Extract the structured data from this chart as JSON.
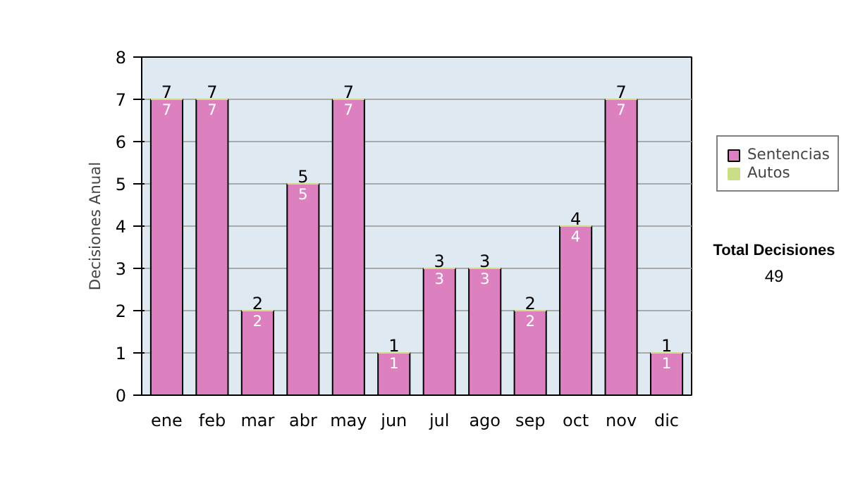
{
  "chart_data": {
    "type": "bar",
    "stacked": true,
    "ylabel": "Decisiones Anual",
    "categories": [
      "ene",
      "feb",
      "mar",
      "abr",
      "may",
      "jun",
      "jul",
      "ago",
      "sep",
      "oct",
      "nov",
      "dic"
    ],
    "series": [
      {
        "name": "Sentencias",
        "color": "#dd80bf",
        "values": [
          7,
          7,
          2,
          5,
          7,
          1,
          3,
          3,
          2,
          4,
          7,
          1
        ],
        "value_labels": [
          "7",
          "7",
          "2",
          "5",
          "7",
          "1",
          "3",
          "3",
          "2",
          "4",
          "7",
          "1"
        ]
      },
      {
        "name": "Autos",
        "color": "#ccdd88",
        "values": [
          0,
          0,
          0,
          0,
          0,
          0,
          0,
          0,
          0,
          0,
          0,
          0
        ]
      }
    ],
    "totals": [
      "7",
      "7",
      "2",
      "5",
      "7",
      "1",
      "3",
      "3",
      "2",
      "4",
      "7",
      "1"
    ],
    "ylim": [
      0,
      8
    ],
    "yticks": [
      0,
      1,
      2,
      3,
      4,
      5,
      6,
      7,
      8
    ],
    "grid": "y",
    "legend": "right",
    "annotations": [
      "Total Decisiones",
      "49"
    ]
  }
}
